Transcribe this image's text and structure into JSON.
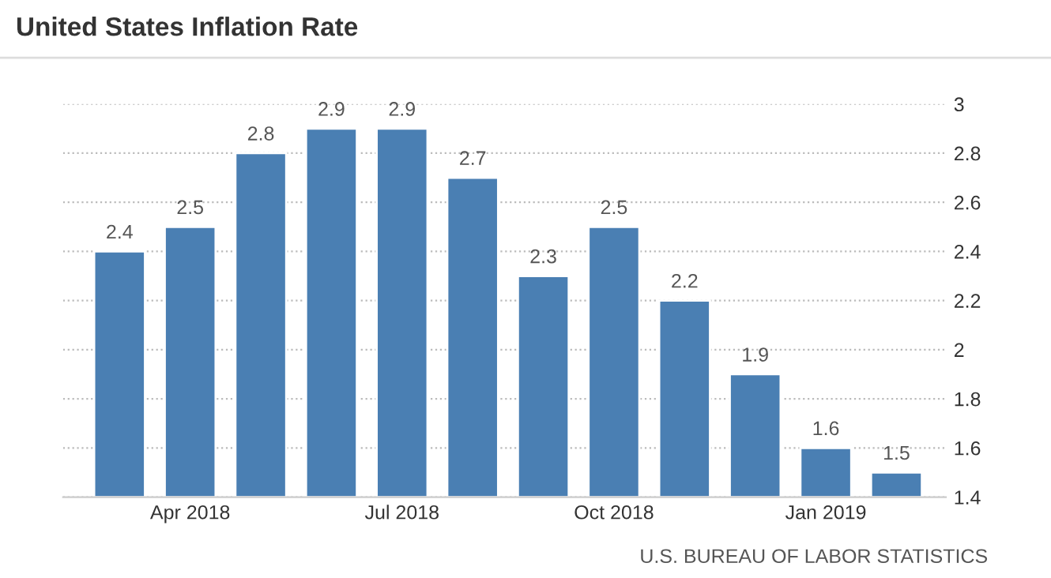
{
  "chart_data": {
    "type": "bar",
    "title": "United States Inflation Rate",
    "categories": [
      null,
      "Apr 2018",
      null,
      null,
      "Jul 2018",
      null,
      null,
      "Oct 2018",
      null,
      null,
      "Jan 2019",
      null
    ],
    "values": [
      2.4,
      2.5,
      2.8,
      2.9,
      2.9,
      2.7,
      2.3,
      2.5,
      2.2,
      1.9,
      1.6,
      1.5
    ],
    "color": "#4a7fb3",
    "ylim": [
      1.4,
      3
    ],
    "yticks": [
      1.4,
      1.6,
      1.8,
      2,
      2.2,
      2.4,
      2.6,
      2.8,
      3
    ],
    "grid": "y",
    "data_labels": true,
    "annotations": [
      "U.S. BUREAU OF LABOR STATISTICS"
    ]
  }
}
